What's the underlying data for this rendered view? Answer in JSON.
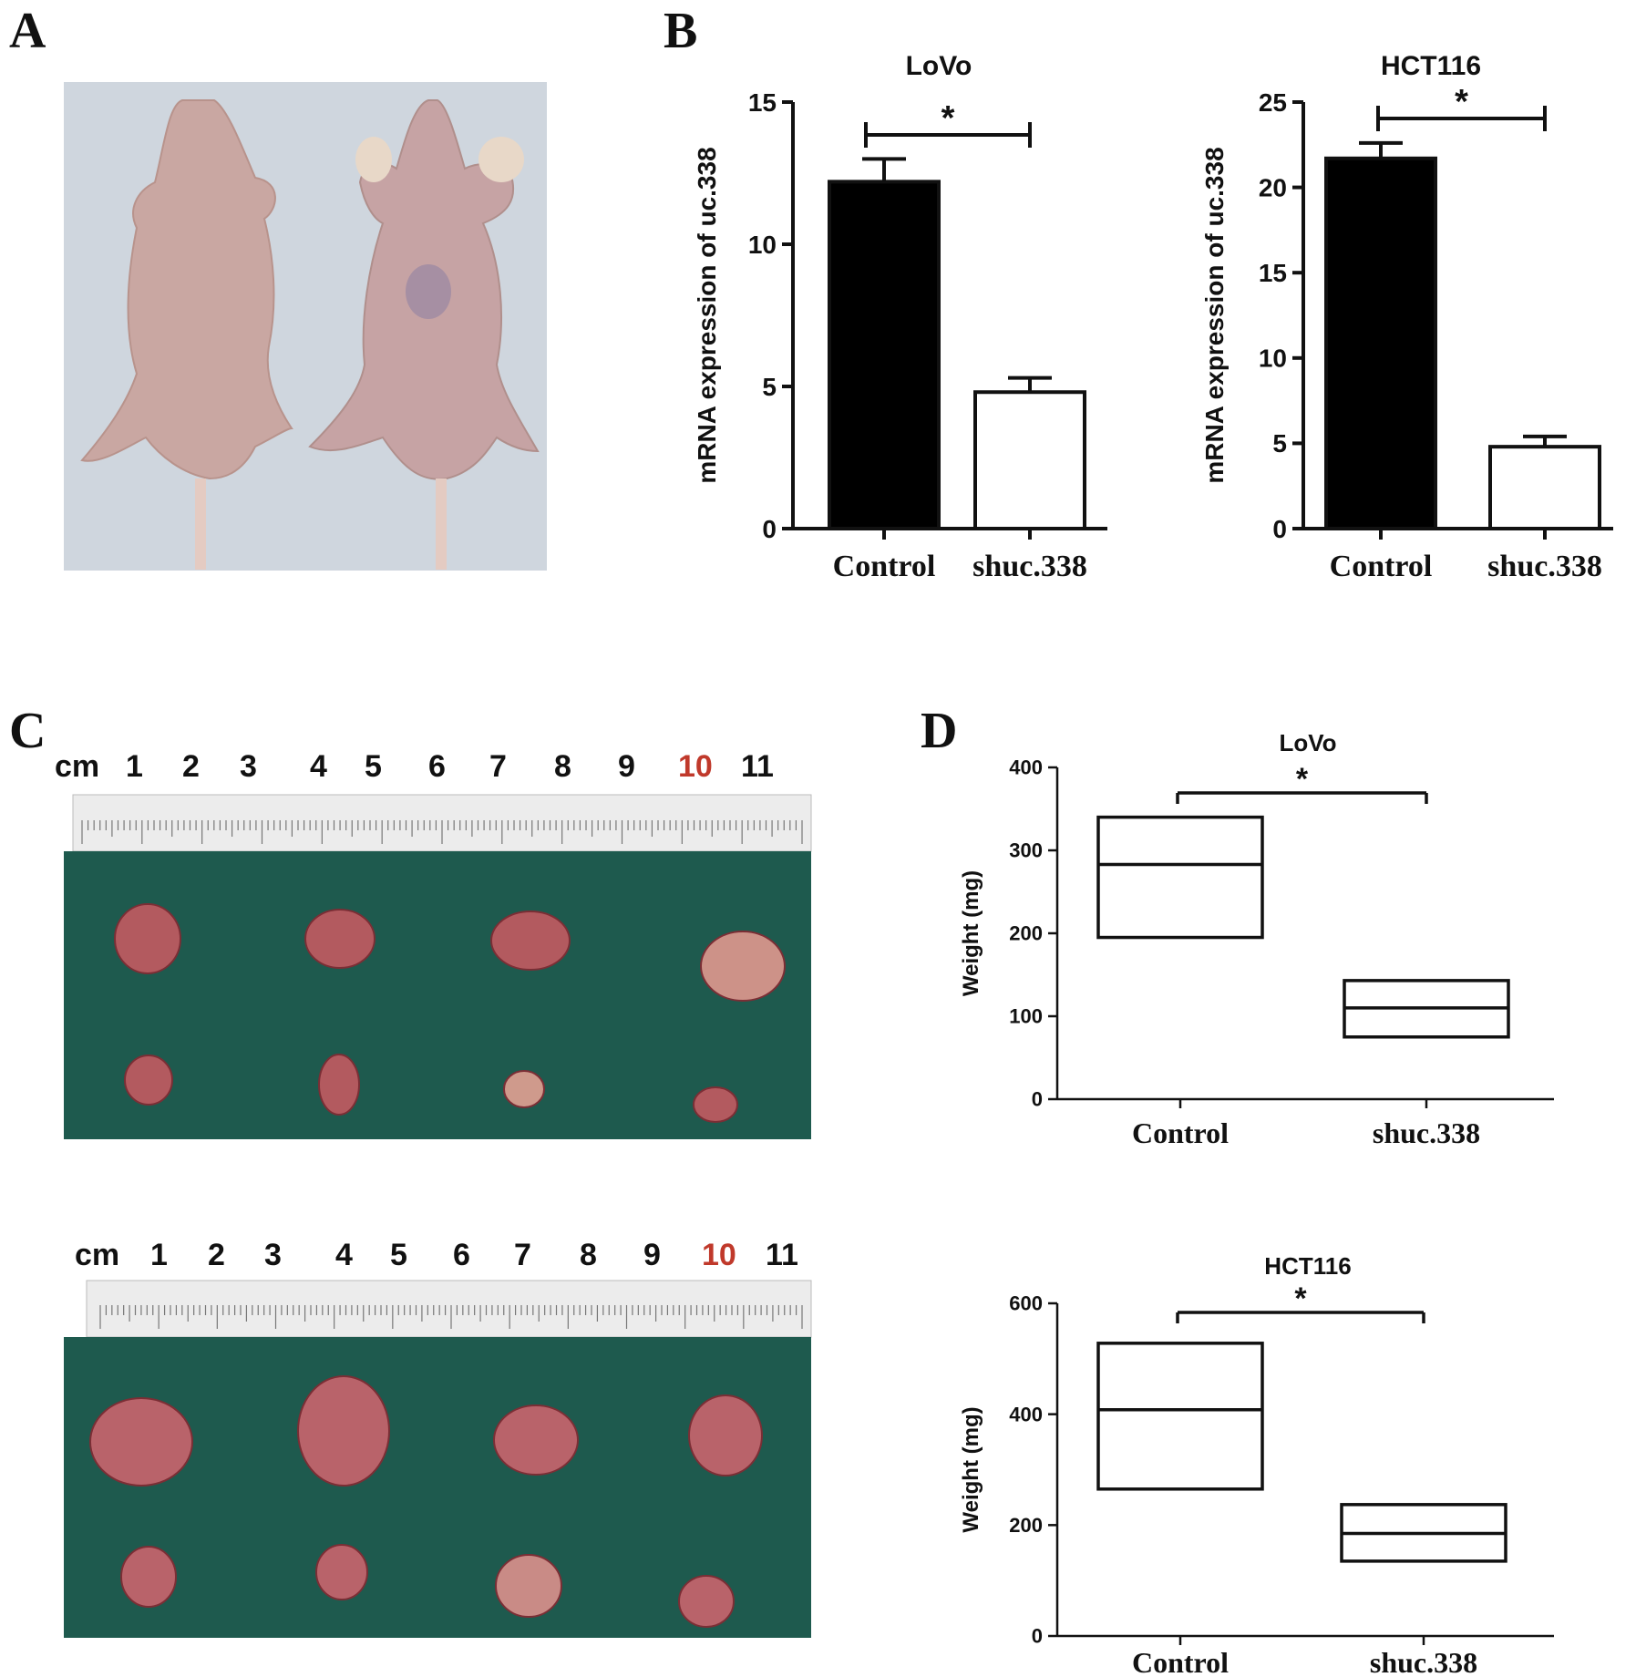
{
  "panels": {
    "a": "A",
    "b": "B",
    "c": "C",
    "d": "D"
  },
  "ruler_top": {
    "unit": "cm",
    "numbers": [
      "1",
      "2",
      "3",
      "4",
      "5",
      "6",
      "7",
      "8",
      "9",
      "10",
      "11"
    ],
    "highlight": "10",
    "highlight_color": "#c0392b"
  },
  "ruler_bottom": {
    "unit": "cm",
    "numbers": [
      "1",
      "2",
      "3",
      "4",
      "5",
      "6",
      "7",
      "8",
      "9",
      "10",
      "11"
    ],
    "highlight": "10",
    "highlight_color": "#c0392b"
  },
  "colors": {
    "mouse_bg": "#cdd4dc",
    "cloth": "#1f5a4d",
    "tumor": "#b5545a",
    "ink": "#111111",
    "bar_fill_control": "#000000",
    "bar_fill_shuc": "#ffffff"
  },
  "chart_data": [
    {
      "id": "B-left",
      "type": "bar",
      "title": "LoVo",
      "ylabel": "mRNA expression of uc.338",
      "categories": [
        "Control",
        "shuc.338"
      ],
      "values": [
        12.2,
        4.8
      ],
      "errors": [
        0.8,
        0.5
      ],
      "ylim": [
        0,
        15
      ],
      "yticks": [
        "0",
        "5",
        "10",
        "15"
      ],
      "yticks_values": [
        0,
        5,
        10,
        15
      ],
      "significance": "*"
    },
    {
      "id": "B-right",
      "type": "bar",
      "title": "HCT116",
      "ylabel": "mRNA expression of uc.338",
      "categories": [
        "Control",
        "shuc.338"
      ],
      "values": [
        21.7,
        4.8
      ],
      "errors": [
        0.9,
        0.6
      ],
      "ylim": [
        0,
        25
      ],
      "yticks": [
        "0",
        "5",
        "10",
        "15",
        "20",
        "25"
      ],
      "yticks_values": [
        0,
        5,
        10,
        15,
        20,
        25
      ],
      "significance": "*"
    },
    {
      "id": "D-top",
      "type": "box",
      "title": "LoVo",
      "ylabel": "Weight (mg)",
      "categories": [
        "Control",
        "shuc.338"
      ],
      "boxes": [
        {
          "low": 195,
          "median": 283,
          "high": 340
        },
        {
          "low": 75,
          "median": 110,
          "high": 143
        }
      ],
      "ylim": [
        0,
        400
      ],
      "yticks": [
        "0",
        "100",
        "200",
        "300",
        "400"
      ],
      "yticks_values": [
        0,
        100,
        200,
        300,
        400
      ],
      "significance": "*"
    },
    {
      "id": "D-bottom",
      "type": "box",
      "title": "HCT116",
      "ylabel": "Weight (mg)",
      "categories": [
        "Control",
        "shuc.338"
      ],
      "boxes": [
        {
          "low": 265,
          "median": 408,
          "high": 528
        },
        {
          "low": 135,
          "median": 185,
          "high": 237
        }
      ],
      "ylim": [
        0,
        600
      ],
      "yticks": [
        "0",
        "200",
        "400",
        "600"
      ],
      "yticks_values": [
        0,
        200,
        400,
        600
      ],
      "significance": "*"
    }
  ]
}
